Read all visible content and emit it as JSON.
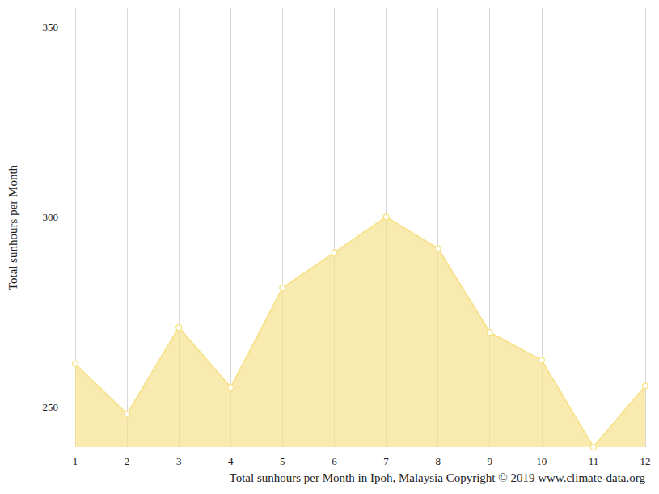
{
  "chart_data": {
    "type": "area",
    "title": "Total sunhours per Month in Ipoh, Malaysia Copyright © 2019 www.climate-data.org",
    "ylabel": "Total sunhours per Month",
    "categories": [
      "1",
      "2",
      "3",
      "4",
      "5",
      "6",
      "7",
      "8",
      "9",
      "10",
      "11",
      "12"
    ],
    "values": [
      261.3,
      248.1,
      270.9,
      255.1,
      281.3,
      290.6,
      300,
      291.7,
      269.6,
      262.3,
      239.4,
      255.5
    ],
    "color": "#f7e38f",
    "marker": "circle",
    "ylim": [
      239.4,
      355
    ],
    "yticks": [
      250,
      300,
      350
    ],
    "grid": true
  }
}
